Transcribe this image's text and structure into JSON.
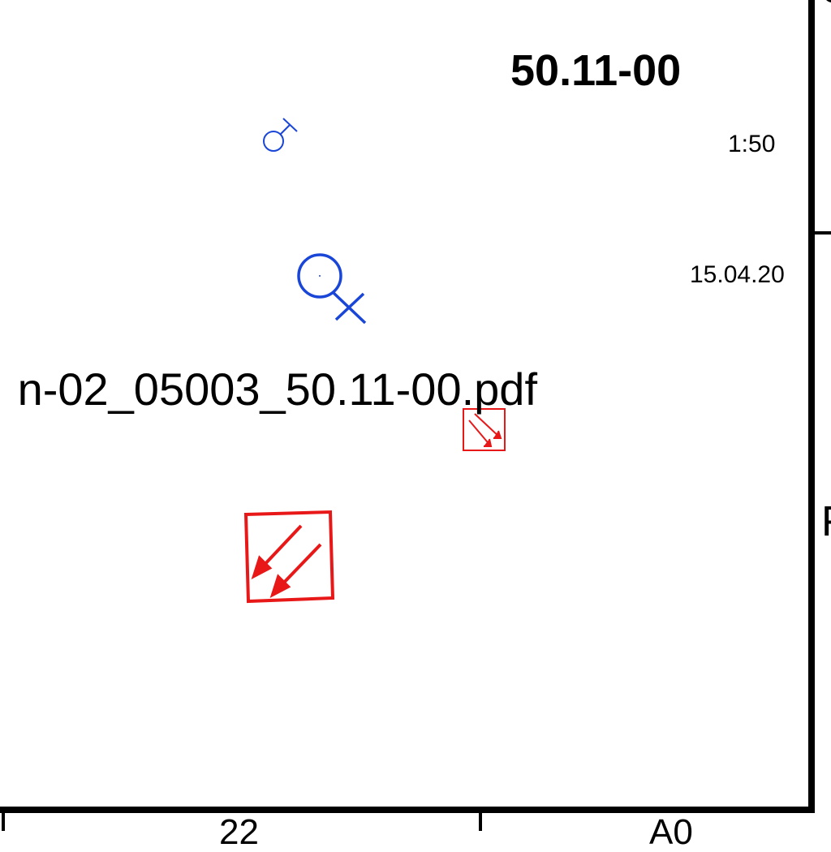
{
  "title_block": {
    "drawing_number": "50.11-00",
    "scale": "1:50",
    "date": "15.04.20"
  },
  "filename": "n-02_05003_50.11-00.pdf",
  "clipped_text": {
    "top_right": "G",
    "right": "F",
    "bottom_1": "22",
    "bottom_2": "A0"
  },
  "markers": {
    "female_symbol_color": "#1a46d8",
    "arrow_box_color": "#e81818",
    "female_symbol_icon": "female-symbol-icon",
    "arrow_box_icon": "down-left-arrows-box-icon"
  }
}
